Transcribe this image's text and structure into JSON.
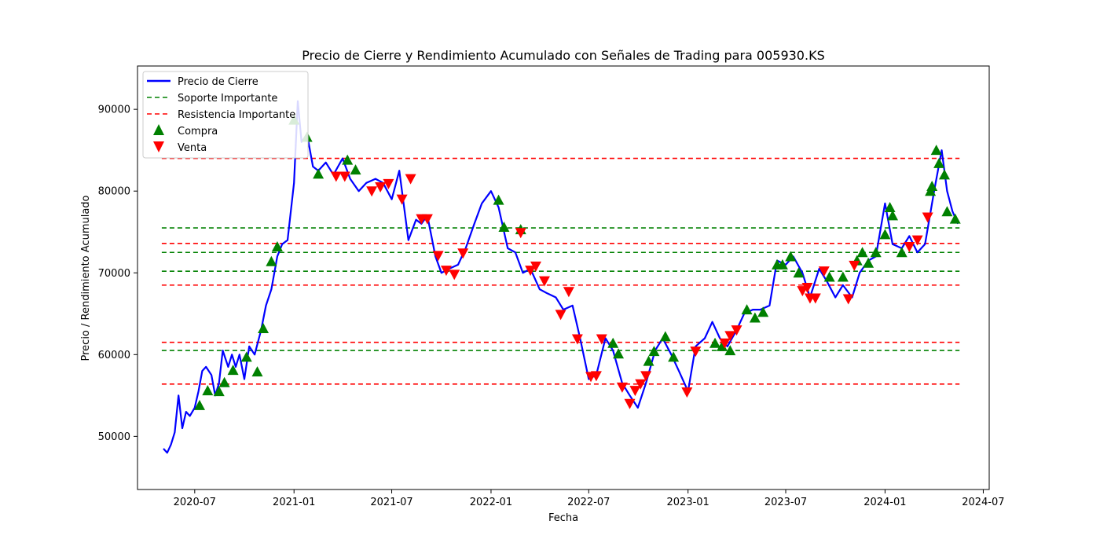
{
  "chart_data": {
    "type": "line",
    "title": "Precio de Cierre y Rendimiento Acumulado con Señales de Trading para 005930.KS",
    "xlabel": "Fecha",
    "ylabel": "Precio / Rendimiento Acumulado",
    "xlim": [
      "2020-03-17",
      "2024-07-12"
    ],
    "ylim": [
      43500,
      95300
    ],
    "x_ticks": [
      "2020-07",
      "2021-01",
      "2021-07",
      "2022-01",
      "2022-07",
      "2023-01",
      "2023-07",
      "2024-01",
      "2024-07"
    ],
    "x_tick_dates": [
      "2020-07-01",
      "2021-01-01",
      "2021-07-01",
      "2022-01-01",
      "2022-07-01",
      "2023-01-01",
      "2023-07-01",
      "2024-01-01",
      "2024-07-01"
    ],
    "y_ticks": [
      50000,
      60000,
      70000,
      80000,
      90000
    ],
    "legend_position": "upper left",
    "grid": false,
    "series": [
      {
        "name": "Precio de Cierre",
        "color": "#0000ff",
        "style": "solid",
        "x": [
          "2020-05-04",
          "2020-05-11",
          "2020-05-18",
          "2020-05-25",
          "2020-06-01",
          "2020-06-08",
          "2020-06-15",
          "2020-06-22",
          "2020-07-01",
          "2020-07-08",
          "2020-07-15",
          "2020-07-22",
          "2020-08-01",
          "2020-08-08",
          "2020-08-15",
          "2020-08-22",
          "2020-09-01",
          "2020-09-08",
          "2020-09-15",
          "2020-09-22",
          "2020-10-01",
          "2020-10-10",
          "2020-10-20",
          "2020-11-01",
          "2020-11-10",
          "2020-11-20",
          "2020-12-01",
          "2020-12-10",
          "2020-12-20",
          "2021-01-01",
          "2021-01-08",
          "2021-01-15",
          "2021-01-25",
          "2021-02-05",
          "2021-02-15",
          "2021-03-01",
          "2021-03-15",
          "2021-04-01",
          "2021-04-15",
          "2021-05-01",
          "2021-05-15",
          "2021-06-01",
          "2021-06-15",
          "2021-07-01",
          "2021-07-15",
          "2021-08-01",
          "2021-08-15",
          "2021-08-25",
          "2021-09-05",
          "2021-09-20",
          "2021-10-01",
          "2021-10-15",
          "2021-11-01",
          "2021-11-15",
          "2021-12-01",
          "2021-12-15",
          "2022-01-01",
          "2022-01-15",
          "2022-02-01",
          "2022-02-15",
          "2022-03-01",
          "2022-03-15",
          "2022-04-01",
          "2022-04-15",
          "2022-05-01",
          "2022-05-15",
          "2022-06-01",
          "2022-06-15",
          "2022-07-01",
          "2022-07-15",
          "2022-08-01",
          "2022-08-15",
          "2022-09-01",
          "2022-09-15",
          "2022-09-30",
          "2022-10-15",
          "2022-11-01",
          "2022-11-15",
          "2022-12-01",
          "2022-12-15",
          "2023-01-01",
          "2023-01-15",
          "2023-02-01",
          "2023-02-15",
          "2023-03-01",
          "2023-03-15",
          "2023-04-01",
          "2023-04-15",
          "2023-05-01",
          "2023-05-15",
          "2023-06-01",
          "2023-06-15",
          "2023-07-01",
          "2023-07-15",
          "2023-08-01",
          "2023-08-15",
          "2023-09-01",
          "2023-09-15",
          "2023-10-01",
          "2023-10-15",
          "2023-11-01",
          "2023-11-15",
          "2023-12-01",
          "2023-12-15",
          "2024-01-01",
          "2024-01-15",
          "2024-02-01",
          "2024-02-15",
          "2024-03-01",
          "2024-03-15",
          "2024-04-01",
          "2024-04-15",
          "2024-04-25",
          "2024-05-05",
          "2024-05-15"
        ],
        "y": [
          48500,
          48000,
          49000,
          50500,
          55000,
          51000,
          53000,
          52500,
          53500,
          55500,
          58000,
          58500,
          57500,
          55000,
          56500,
          60500,
          58500,
          60000,
          58500,
          60000,
          57000,
          61000,
          60000,
          63000,
          66000,
          68000,
          72000,
          73500,
          74000,
          81000,
          91000,
          86000,
          87000,
          83000,
          82500,
          83500,
          82000,
          84000,
          81500,
          80000,
          81000,
          81500,
          81000,
          79000,
          82500,
          74000,
          76500,
          76000,
          77000,
          72000,
          70000,
          70500,
          71000,
          73000,
          76000,
          78500,
          80000,
          78000,
          73000,
          72500,
          70000,
          70500,
          68000,
          67500,
          67000,
          65500,
          66000,
          62000,
          57000,
          57500,
          62000,
          60500,
          56500,
          55000,
          53500,
          56500,
          60500,
          62000,
          60000,
          58000,
          55500,
          61000,
          62000,
          64000,
          62000,
          61000,
          63000,
          65000,
          65500,
          65500,
          66000,
          71500,
          71000,
          72000,
          70000,
          67000,
          70500,
          69000,
          67000,
          68500,
          67000,
          70000,
          71500,
          72000,
          78500,
          73500,
          73000,
          74500,
          72500,
          73500,
          80000,
          85000,
          80000,
          77500,
          76000
        ]
      }
    ],
    "support_levels": [
      75500,
      72500,
      70200,
      60500
    ],
    "resistance_levels": [
      84000,
      73600,
      68500,
      61500,
      56400
    ],
    "level_range": [
      "2020-05-01",
      "2024-05-18"
    ],
    "support_name": "Soporte Importante",
    "support_color": "#008000",
    "resistance_name": "Resistencia Importante",
    "resistance_color": "#ff0000",
    "buy_signals": {
      "name": "Compra",
      "color": "#008000",
      "x": [
        "2020-07-10",
        "2020-07-25",
        "2020-08-15",
        "2020-08-25",
        "2020-09-10",
        "2020-10-05",
        "2020-10-25",
        "2020-11-05",
        "2020-11-20",
        "2020-12-01",
        "2021-01-01",
        "2021-01-25",
        "2021-02-15",
        "2021-04-10",
        "2021-04-25",
        "2022-01-15",
        "2022-01-25",
        "2022-02-25",
        "2022-08-15",
        "2022-08-25",
        "2022-10-20",
        "2022-10-30",
        "2022-11-20",
        "2022-12-05",
        "2023-02-20",
        "2023-03-05",
        "2023-03-20",
        "2023-04-20",
        "2023-05-05",
        "2023-05-20",
        "2023-06-15",
        "2023-06-25",
        "2023-07-10",
        "2023-07-25",
        "2023-09-20",
        "2023-10-15",
        "2023-11-10",
        "2023-11-20",
        "2023-12-01",
        "2023-12-15",
        "2024-01-01",
        "2024-01-10",
        "2024-01-15",
        "2024-02-01",
        "2024-03-25",
        "2024-03-28",
        "2024-04-05",
        "2024-04-10",
        "2024-04-20",
        "2024-04-25",
        "2024-05-10"
      ],
      "y": [
        53800,
        55600,
        55500,
        56600,
        58100,
        59700,
        57900,
        63200,
        71400,
        73200,
        88700,
        86600,
        82100,
        83800,
        82600,
        78900,
        75600,
        75300,
        61400,
        60100,
        59200,
        60400,
        62200,
        59700,
        61400,
        61000,
        60500,
        65500,
        64500,
        65200,
        71000,
        71000,
        72000,
        70000,
        69500,
        69500,
        71500,
        72500,
        71200,
        72500,
        74700,
        78000,
        77000,
        72500,
        80000,
        80600,
        85000,
        83400,
        82000,
        77500,
        76600
      ]
    },
    "sell_signals": {
      "name": "Venta",
      "color": "#ff0000",
      "x": [
        "2021-03-20",
        "2021-04-05",
        "2021-05-25",
        "2021-06-10",
        "2021-06-25",
        "2021-07-20",
        "2021-08-05",
        "2021-08-25",
        "2021-09-05",
        "2021-09-25",
        "2021-10-10",
        "2021-10-25",
        "2021-11-10",
        "2022-02-25",
        "2022-03-15",
        "2022-03-25",
        "2022-04-10",
        "2022-05-10",
        "2022-05-25",
        "2022-06-10",
        "2022-07-05",
        "2022-07-15",
        "2022-07-25",
        "2022-09-01",
        "2022-09-15",
        "2022-09-25",
        "2022-10-05",
        "2022-10-15",
        "2022-12-30",
        "2023-01-15",
        "2023-03-10",
        "2023-03-20",
        "2023-04-01",
        "2023-08-01",
        "2023-08-10",
        "2023-08-15",
        "2023-08-25",
        "2023-09-10",
        "2023-10-25",
        "2023-11-05",
        "2024-02-15",
        "2024-03-01",
        "2024-03-20"
      ],
      "y": [
        81800,
        81800,
        80000,
        80500,
        80900,
        79000,
        81500,
        76600,
        76600,
        72100,
        70300,
        69800,
        72400,
        74900,
        70300,
        70800,
        69000,
        64900,
        67700,
        61900,
        57300,
        57400,
        61900,
        56000,
        54000,
        55600,
        56400,
        57400,
        55400,
        60400,
        61400,
        62300,
        63000,
        67800,
        68200,
        66900,
        66900,
        70200,
        66800,
        70900,
        73200,
        74000,
        76800
      ]
    }
  }
}
